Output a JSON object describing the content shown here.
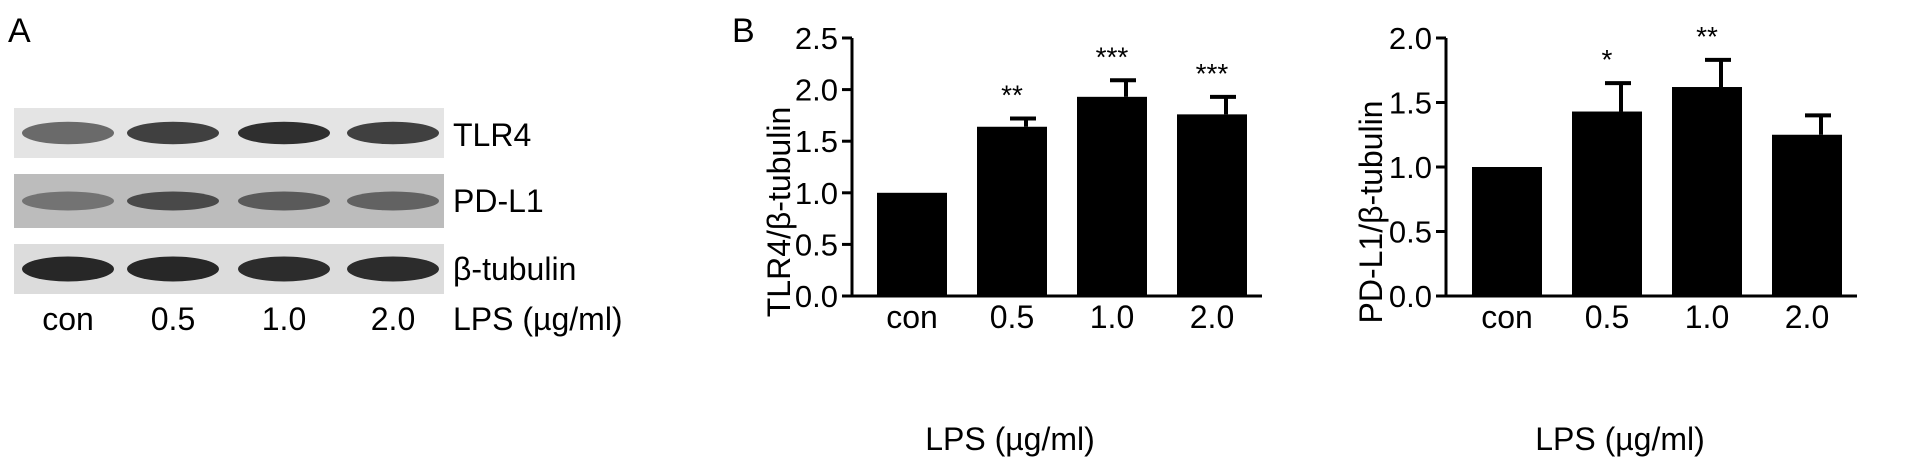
{
  "panel_a": {
    "label": "A",
    "rows": [
      {
        "label": "TLR4",
        "intensity": [
          0.55,
          0.8,
          0.9,
          0.8
        ],
        "band_height": 0.45
      },
      {
        "label": "PD-L1",
        "intensity": [
          0.5,
          0.75,
          0.65,
          0.6
        ],
        "band_height": 0.35
      },
      {
        "label": "β-tubulin",
        "intensity": [
          0.95,
          0.95,
          0.92,
          0.92
        ],
        "band_height": 0.5
      }
    ],
    "lanes": [
      "con",
      "0.5",
      "1.0",
      "2.0"
    ],
    "treatment_label": "LPS (µg/ml)"
  },
  "panel_b": {
    "label": "B"
  },
  "chart_data": [
    {
      "type": "bar",
      "categories": [
        "con",
        "0.5",
        "1.0",
        "2.0"
      ],
      "values": [
        1.0,
        1.64,
        1.93,
        1.76
      ],
      "errors": [
        0,
        0.08,
        0.16,
        0.17
      ],
      "significance": [
        "",
        "**",
        "***",
        "***"
      ],
      "xlabel": "LPS (µg/ml)",
      "ylabel": "TLR4/β-tubulin",
      "ylim": [
        0,
        2.5
      ],
      "yticks": [
        "0.0",
        "0.5",
        "1.0",
        "1.5",
        "2.0",
        "2.5"
      ],
      "bar_color": "#000000"
    },
    {
      "type": "bar",
      "categories": [
        "con",
        "0.5",
        "1.0",
        "2.0"
      ],
      "values": [
        1.0,
        1.43,
        1.62,
        1.25
      ],
      "errors": [
        0,
        0.22,
        0.21,
        0.15
      ],
      "significance": [
        "",
        "*",
        "**",
        ""
      ],
      "xlabel": "LPS (µg/ml)",
      "ylabel": "PD-L1/β-tubulin",
      "ylim": [
        0,
        2.0
      ],
      "yticks": [
        "0.0",
        "0.5",
        "1.0",
        "1.5",
        "2.0"
      ],
      "bar_color": "#000000"
    }
  ]
}
